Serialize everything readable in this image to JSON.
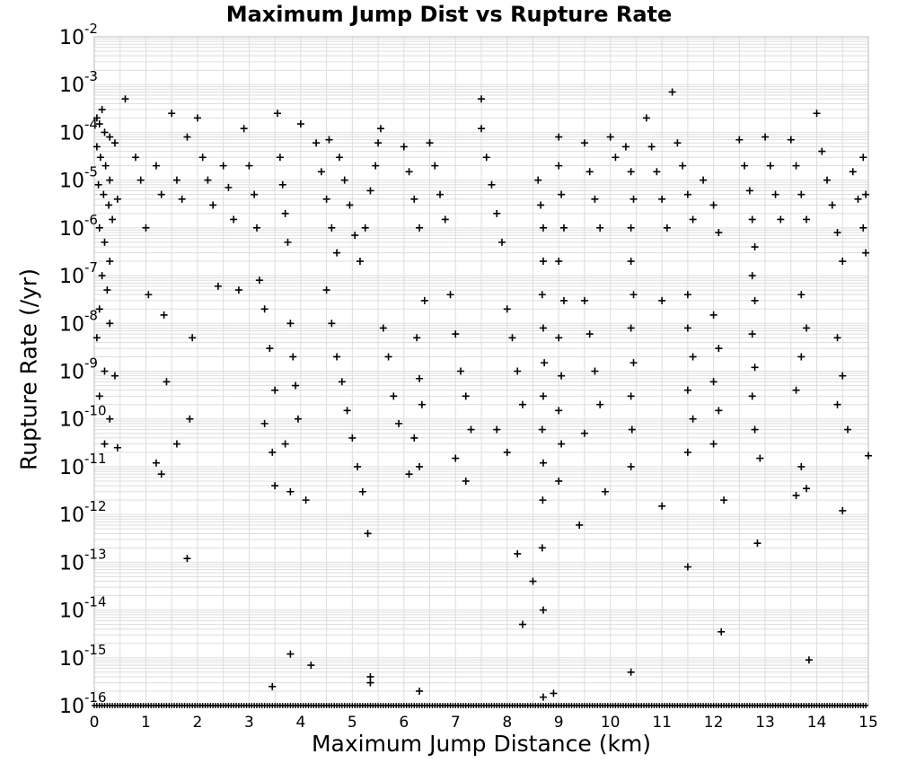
{
  "chart_data": {
    "type": "scatter",
    "title": "Maximum Jump Dist vs Rupture Rate",
    "xlabel": "Maximum Jump Distance (km)",
    "ylabel": "Rupture Rate (/yr)",
    "xlim": [
      0,
      15
    ],
    "ylim": [
      1e-16,
      0.01
    ],
    "yscale": "log",
    "grid": true,
    "marker": "+",
    "marker_color": "#000000",
    "grid_color": "#dddddd",
    "x_ticks": [
      "0",
      "1",
      "2",
      "3",
      "4",
      "5",
      "6",
      "7",
      "8",
      "9",
      "10",
      "11",
      "12",
      "13",
      "14",
      "15"
    ],
    "y_ticks": [
      {
        "base": "10",
        "exp": "-2"
      },
      {
        "base": "10",
        "exp": "-3"
      },
      {
        "base": "10",
        "exp": "-4"
      },
      {
        "base": "10",
        "exp": "-5"
      },
      {
        "base": "10",
        "exp": "-6"
      },
      {
        "base": "10",
        "exp": "-7"
      },
      {
        "base": "10",
        "exp": "-8"
      },
      {
        "base": "10",
        "exp": "-9"
      },
      {
        "base": "10",
        "exp": "-10"
      },
      {
        "base": "10",
        "exp": "-11"
      },
      {
        "base": "10",
        "exp": "-12"
      },
      {
        "base": "10",
        "exp": "-13"
      },
      {
        "base": "10",
        "exp": "-14"
      },
      {
        "base": "10",
        "exp": "-15"
      },
      {
        "base": "10",
        "exp": "-16"
      }
    ],
    "points": [
      [
        0.05,
        0.0002
      ],
      [
        0.1,
        0.00015
      ],
      [
        0.15,
        0.0003
      ],
      [
        0.2,
        0.0001
      ],
      [
        0.3,
        8e-05
      ],
      [
        0.05,
        5e-05
      ],
      [
        0.12,
        3e-05
      ],
      [
        0.22,
        2e-05
      ],
      [
        0.3,
        1e-05
      ],
      [
        0.4,
        6e-05
      ],
      [
        0.08,
        8e-06
      ],
      [
        0.18,
        5e-06
      ],
      [
        0.28,
        3e-06
      ],
      [
        0.35,
        1.5e-06
      ],
      [
        0.45,
        4e-06
      ],
      [
        0.1,
        1e-06
      ],
      [
        0.2,
        5e-07
      ],
      [
        0.3,
        2e-07
      ],
      [
        0.15,
        1e-07
      ],
      [
        0.25,
        5e-08
      ],
      [
        0.1,
        2e-08
      ],
      [
        0.3,
        1e-08
      ],
      [
        0.05,
        5e-09
      ],
      [
        0.2,
        1e-09
      ],
      [
        0.4,
        8e-10
      ],
      [
        0.1,
        3e-10
      ],
      [
        0.3,
        1e-10
      ],
      [
        0.2,
        3e-11
      ],
      [
        0.45,
        2.5e-11
      ],
      [
        0.6,
        0.0005
      ],
      [
        0.8,
        3e-05
      ],
      [
        0.9,
        1e-05
      ],
      [
        1.0,
        1e-06
      ],
      [
        1.05,
        4e-08
      ],
      [
        1.2,
        2e-05
      ],
      [
        1.3,
        5e-06
      ],
      [
        1.35,
        1.5e-08
      ],
      [
        1.4,
        6e-10
      ],
      [
        1.2,
        1.2e-11
      ],
      [
        1.3,
        7e-12
      ],
      [
        1.5,
        0.00025
      ],
      [
        1.6,
        1e-05
      ],
      [
        1.7,
        4e-06
      ],
      [
        1.8,
        8e-05
      ],
      [
        1.9,
        5e-09
      ],
      [
        1.85,
        1e-10
      ],
      [
        1.6,
        3e-11
      ],
      [
        1.8,
        1.2e-13
      ],
      [
        2.0,
        0.0002
      ],
      [
        2.1,
        3e-05
      ],
      [
        2.2,
        1e-05
      ],
      [
        2.3,
        3e-06
      ],
      [
        2.4,
        6e-08
      ],
      [
        2.5,
        2e-05
      ],
      [
        2.6,
        7e-06
      ],
      [
        2.7,
        1.5e-06
      ],
      [
        2.8,
        5e-08
      ],
      [
        2.9,
        0.00012
      ],
      [
        3.0,
        2e-05
      ],
      [
        3.1,
        5e-06
      ],
      [
        3.15,
        1e-06
      ],
      [
        3.2,
        8e-08
      ],
      [
        3.3,
        2e-08
      ],
      [
        3.4,
        3e-09
      ],
      [
        3.5,
        4e-10
      ],
      [
        3.3,
        8e-11
      ],
      [
        3.45,
        2e-11
      ],
      [
        3.5,
        4e-12
      ],
      [
        3.55,
        0.00025
      ],
      [
        3.6,
        3e-05
      ],
      [
        3.65,
        8e-06
      ],
      [
        3.7,
        2e-06
      ],
      [
        3.75,
        5e-07
      ],
      [
        3.8,
        1e-08
      ],
      [
        3.85,
        2e-09
      ],
      [
        3.9,
        5e-10
      ],
      [
        3.95,
        1e-10
      ],
      [
        3.7,
        3e-11
      ],
      [
        3.8,
        3e-12
      ],
      [
        4.0,
        0.00015
      ],
      [
        4.1,
        2e-12
      ],
      [
        3.45,
        2.5e-16
      ],
      [
        3.8,
        1.2e-15
      ],
      [
        4.2,
        7e-16
      ],
      [
        4.3,
        6e-05
      ],
      [
        4.4,
        1.5e-05
      ],
      [
        4.5,
        4e-06
      ],
      [
        4.6,
        1e-06
      ],
      [
        4.7,
        3e-07
      ],
      [
        4.5,
        5e-08
      ],
      [
        4.6,
        1e-08
      ],
      [
        4.7,
        2e-09
      ],
      [
        4.8,
        6e-10
      ],
      [
        4.9,
        1.5e-10
      ],
      [
        5.0,
        4e-11
      ],
      [
        5.1,
        1e-11
      ],
      [
        5.2,
        3e-12
      ],
      [
        5.3,
        4e-13
      ],
      [
        4.55,
        7e-05
      ],
      [
        4.75,
        3e-05
      ],
      [
        4.85,
        1e-05
      ],
      [
        4.95,
        3e-06
      ],
      [
        5.05,
        7e-07
      ],
      [
        5.15,
        2e-07
      ],
      [
        5.25,
        1e-06
      ],
      [
        5.35,
        6e-06
      ],
      [
        5.45,
        2e-05
      ],
      [
        5.5,
        6e-05
      ],
      [
        5.55,
        0.00012
      ],
      [
        5.6,
        8e-09
      ],
      [
        5.7,
        2e-09
      ],
      [
        5.8,
        3e-10
      ],
      [
        5.9,
        8e-11
      ],
      [
        5.35,
        3e-16
      ],
      [
        5.35,
        4e-16
      ],
      [
        6.0,
        5e-05
      ],
      [
        6.1,
        1.5e-05
      ],
      [
        6.2,
        4e-06
      ],
      [
        6.3,
        1e-06
      ],
      [
        6.4,
        3e-08
      ],
      [
        6.25,
        5e-09
      ],
      [
        6.3,
        7e-10
      ],
      [
        6.35,
        2e-10
      ],
      [
        6.2,
        4e-11
      ],
      [
        6.3,
        1e-11
      ],
      [
        6.1,
        7e-12
      ],
      [
        6.3,
        2e-16
      ],
      [
        6.5,
        6e-05
      ],
      [
        6.6,
        2e-05
      ],
      [
        6.7,
        5e-06
      ],
      [
        6.8,
        1.5e-06
      ],
      [
        6.9,
        4e-08
      ],
      [
        7.0,
        6e-09
      ],
      [
        7.1,
        1e-09
      ],
      [
        7.2,
        3e-10
      ],
      [
        7.3,
        6e-11
      ],
      [
        7.0,
        1.5e-11
      ],
      [
        7.2,
        5e-12
      ],
      [
        7.5,
        0.0005
      ],
      [
        7.5,
        0.00012
      ],
      [
        7.6,
        3e-05
      ],
      [
        7.7,
        8e-06
      ],
      [
        7.8,
        2e-06
      ],
      [
        7.9,
        5e-07
      ],
      [
        8.0,
        2e-08
      ],
      [
        8.1,
        5e-09
      ],
      [
        8.2,
        1e-09
      ],
      [
        8.3,
        2e-10
      ],
      [
        7.8,
        6e-11
      ],
      [
        8.0,
        2e-11
      ],
      [
        8.2,
        1.5e-13
      ],
      [
        8.3,
        5e-15
      ],
      [
        8.5,
        4e-14
      ],
      [
        8.6,
        1e-05
      ],
      [
        8.65,
        3e-06
      ],
      [
        8.7,
        1e-06
      ],
      [
        8.7,
        2e-07
      ],
      [
        8.68,
        4e-08
      ],
      [
        8.7,
        8e-09
      ],
      [
        8.72,
        1.5e-09
      ],
      [
        8.7,
        3e-10
      ],
      [
        8.68,
        6e-11
      ],
      [
        8.7,
        1.2e-11
      ],
      [
        8.69,
        2e-12
      ],
      [
        8.68,
        2e-13
      ],
      [
        8.7,
        1e-14
      ],
      [
        8.7,
        1.5e-16
      ],
      [
        8.9,
        1.8e-16
      ],
      [
        9.0,
        8e-05
      ],
      [
        9.0,
        2e-05
      ],
      [
        9.05,
        5e-06
      ],
      [
        9.1,
        1e-06
      ],
      [
        9.0,
        2e-07
      ],
      [
        9.1,
        3e-08
      ],
      [
        9.0,
        5e-09
      ],
      [
        9.05,
        8e-10
      ],
      [
        9.0,
        1.5e-10
      ],
      [
        9.05,
        3e-11
      ],
      [
        9.0,
        5e-12
      ],
      [
        9.4,
        6e-13
      ],
      [
        9.5,
        6e-05
      ],
      [
        9.6,
        1.5e-05
      ],
      [
        9.7,
        4e-06
      ],
      [
        9.8,
        1e-06
      ],
      [
        9.5,
        3e-08
      ],
      [
        9.6,
        6e-09
      ],
      [
        9.7,
        1e-09
      ],
      [
        9.8,
        2e-10
      ],
      [
        9.5,
        5e-11
      ],
      [
        9.9,
        3e-12
      ],
      [
        10.0,
        8e-05
      ],
      [
        10.1,
        3e-05
      ],
      [
        10.3,
        5e-05
      ],
      [
        10.4,
        1.5e-05
      ],
      [
        10.45,
        4e-06
      ],
      [
        10.4,
        1e-06
      ],
      [
        10.4,
        2e-07
      ],
      [
        10.45,
        4e-08
      ],
      [
        10.4,
        8e-09
      ],
      [
        10.45,
        1.5e-09
      ],
      [
        10.4,
        3e-10
      ],
      [
        10.42,
        6e-11
      ],
      [
        10.4,
        1e-11
      ],
      [
        10.4,
        5e-16
      ],
      [
        10.7,
        0.0002
      ],
      [
        10.8,
        5e-05
      ],
      [
        10.9,
        1.5e-05
      ],
      [
        11.0,
        4e-06
      ],
      [
        11.1,
        1e-06
      ],
      [
        11.0,
        3e-08
      ],
      [
        11.0,
        1.5e-12
      ],
      [
        11.2,
        0.0007
      ],
      [
        11.3,
        6e-05
      ],
      [
        11.4,
        2e-05
      ],
      [
        11.5,
        5e-06
      ],
      [
        11.6,
        1.5e-06
      ],
      [
        11.5,
        4e-08
      ],
      [
        11.5,
        8e-09
      ],
      [
        11.6,
        2e-09
      ],
      [
        11.5,
        4e-10
      ],
      [
        11.6,
        1e-10
      ],
      [
        11.5,
        2e-11
      ],
      [
        11.5,
        8e-14
      ],
      [
        11.8,
        1e-05
      ],
      [
        12.0,
        3e-06
      ],
      [
        12.1,
        8e-07
      ],
      [
        12.0,
        1.5e-08
      ],
      [
        12.1,
        3e-09
      ],
      [
        12.0,
        6e-10
      ],
      [
        12.1,
        1.5e-10
      ],
      [
        12.0,
        3e-11
      ],
      [
        12.2,
        2e-12
      ],
      [
        12.15,
        3.5e-15
      ],
      [
        12.5,
        7e-05
      ],
      [
        12.6,
        2e-05
      ],
      [
        12.7,
        6e-06
      ],
      [
        12.75,
        1.5e-06
      ],
      [
        12.8,
        4e-07
      ],
      [
        12.75,
        1e-07
      ],
      [
        12.8,
        3e-08
      ],
      [
        12.75,
        6e-09
      ],
      [
        12.8,
        1.2e-09
      ],
      [
        12.75,
        3e-10
      ],
      [
        12.8,
        6e-11
      ],
      [
        12.9,
        1.5e-11
      ],
      [
        12.85,
        2.5e-13
      ],
      [
        13.0,
        8e-05
      ],
      [
        13.1,
        2e-05
      ],
      [
        13.2,
        5e-06
      ],
      [
        13.3,
        1.5e-06
      ],
      [
        13.5,
        7e-05
      ],
      [
        13.6,
        2e-05
      ],
      [
        13.7,
        5e-06
      ],
      [
        13.8,
        1.5e-06
      ],
      [
        13.7,
        4e-08
      ],
      [
        13.8,
        8e-09
      ],
      [
        13.7,
        2e-09
      ],
      [
        13.6,
        4e-10
      ],
      [
        13.7,
        1e-11
      ],
      [
        13.6,
        2.5e-12
      ],
      [
        13.8,
        3.5e-12
      ],
      [
        13.85,
        9e-16
      ],
      [
        14.0,
        0.00025
      ],
      [
        14.1,
        4e-05
      ],
      [
        14.2,
        1e-05
      ],
      [
        14.3,
        3e-06
      ],
      [
        14.4,
        8e-07
      ],
      [
        14.5,
        2e-07
      ],
      [
        14.4,
        5e-09
      ],
      [
        14.5,
        8e-10
      ],
      [
        14.4,
        2e-10
      ],
      [
        14.5,
        1.2e-12
      ],
      [
        14.6,
        6e-11
      ],
      [
        14.7,
        1.5e-05
      ],
      [
        14.8,
        4e-06
      ],
      [
        14.9,
        1e-06
      ],
      [
        14.95,
        3e-07
      ],
      [
        15.0,
        1.7e-11
      ],
      [
        14.95,
        5e-06
      ],
      [
        14.9,
        3e-05
      ]
    ]
  }
}
